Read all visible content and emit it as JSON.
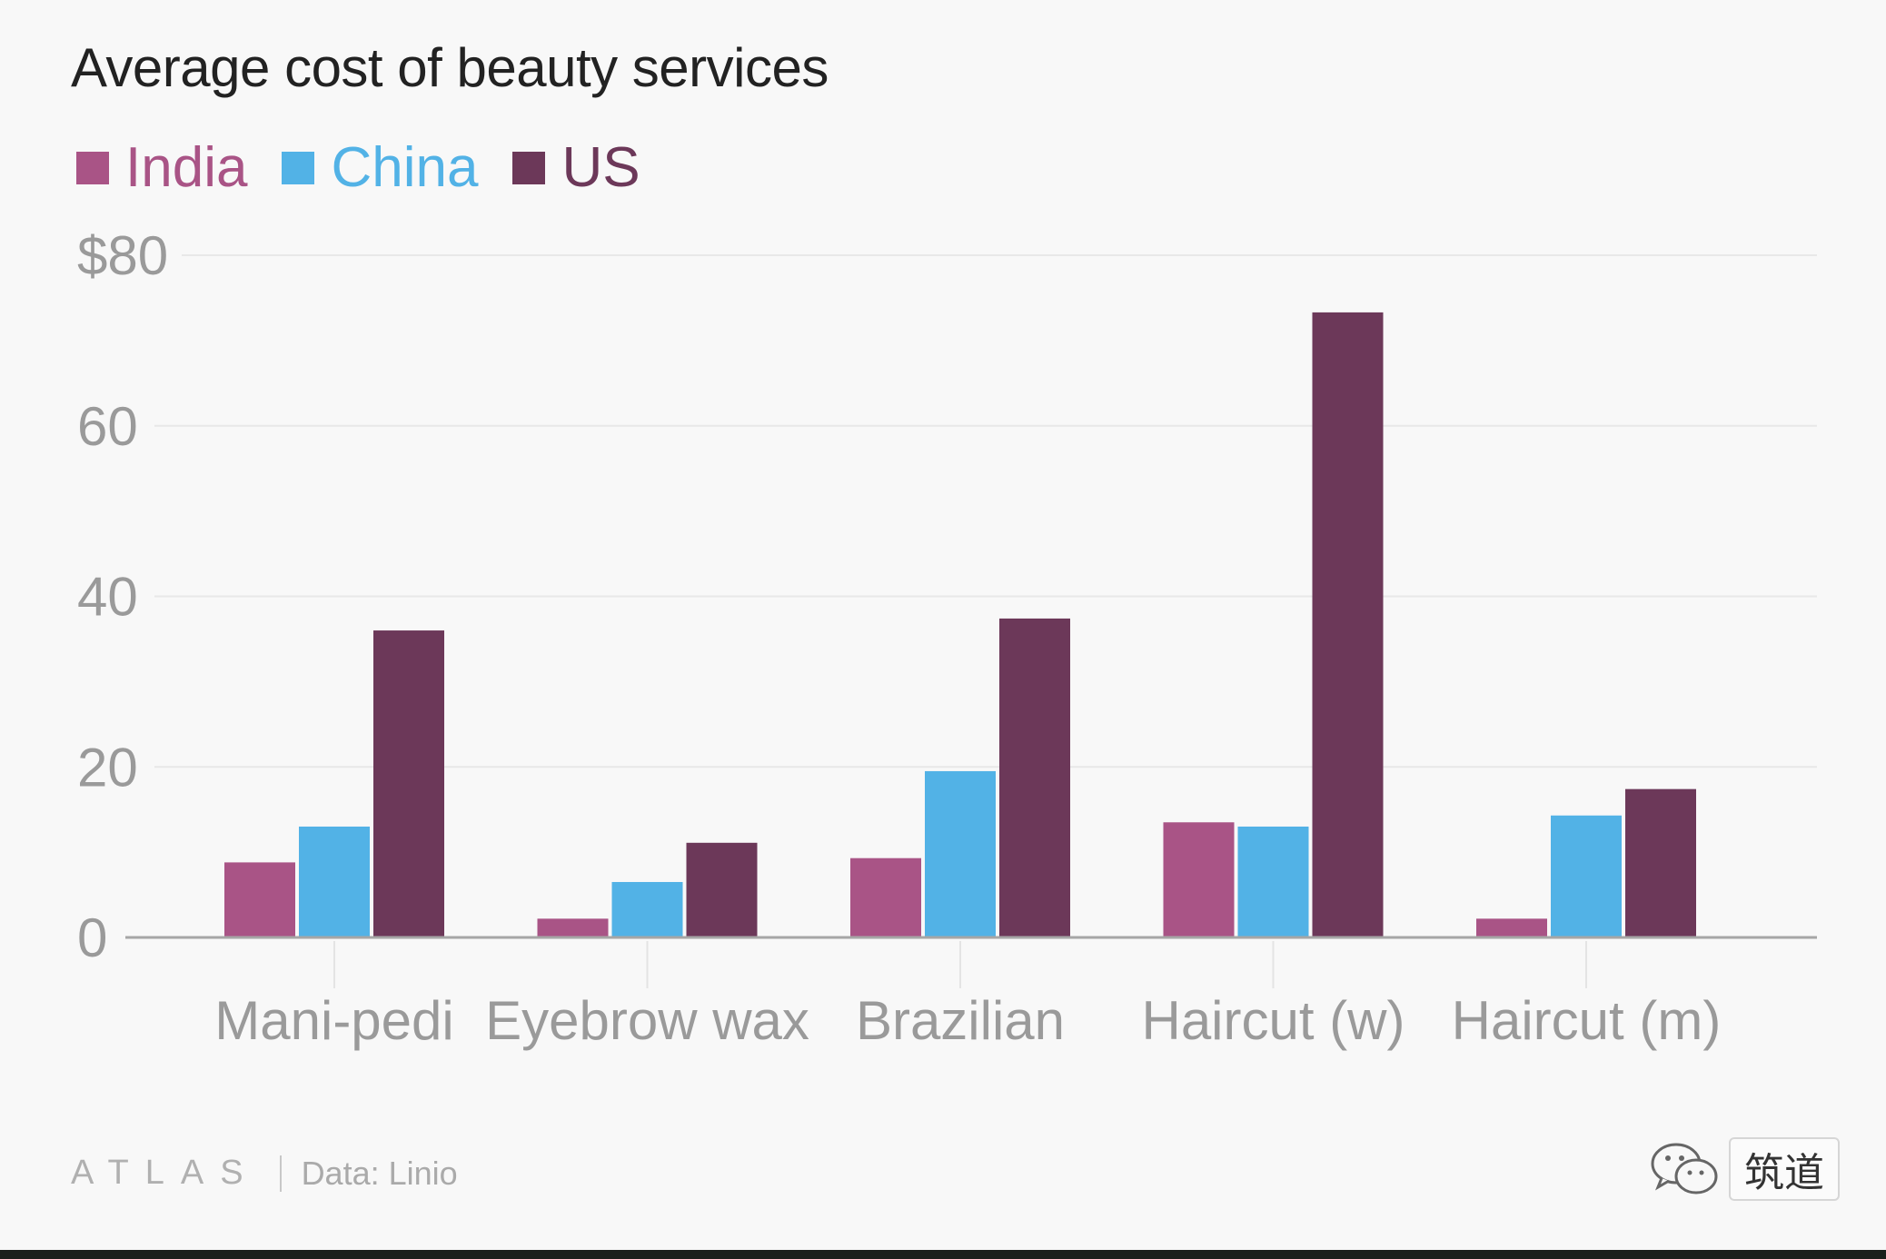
{
  "chart_data": {
    "type": "bar",
    "title": "Average cost of beauty services",
    "categories": [
      "Mani-pedi",
      "Eyebrow wax",
      "Brazilian",
      "Haircut (w)",
      "Haircut (m)"
    ],
    "series": [
      {
        "name": "India",
        "color": "#a95486",
        "values": [
          8.8,
          2.2,
          9.3,
          13.5,
          2.2
        ]
      },
      {
        "name": "China",
        "color": "#52b2e6",
        "values": [
          13.0,
          6.5,
          19.5,
          13.0,
          14.3
        ]
      },
      {
        "name": "US",
        "color": "#6c3859",
        "values": [
          36.0,
          11.1,
          37.4,
          73.3,
          17.4
        ]
      }
    ],
    "ylim": [
      0,
      80
    ],
    "yticks": [
      0,
      20,
      40,
      60,
      80
    ],
    "ytick_labels": [
      "0",
      "20",
      "40",
      "60",
      "$80"
    ],
    "grid": true,
    "legend_position": "top-left"
  },
  "footer": {
    "logo": "ATLAS",
    "source": "Data:  Linio"
  },
  "watermark": {
    "icon": "wechat-icon",
    "text": "筑道"
  },
  "colors": {
    "background": "#f8f8f8",
    "grid": "#e8e8e8",
    "axis": "#a6a6a6",
    "tick_text": "#9a9a9a"
  }
}
